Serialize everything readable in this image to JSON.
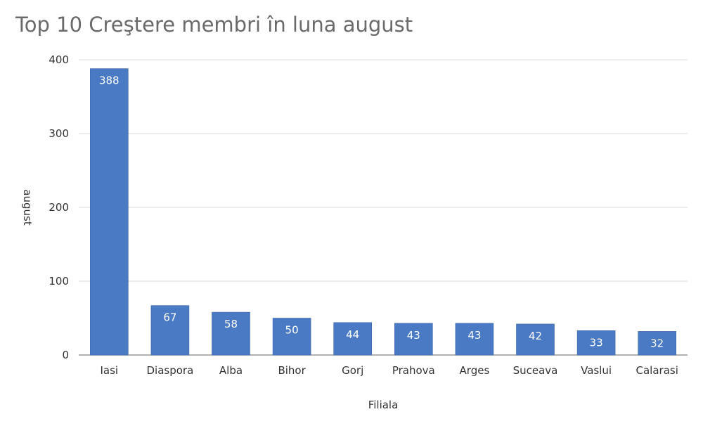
{
  "chart_data": {
    "type": "bar",
    "title": "Top 10 Creştere membri în luna august",
    "xlabel": "Filiala",
    "ylabel": "august",
    "categories": [
      "Iasi",
      "Diaspora",
      "Alba",
      "Bihor",
      "Gorj",
      "Prahova",
      "Arges",
      "Suceava",
      "Vaslui",
      "Calarasi"
    ],
    "values": [
      388,
      67,
      58,
      50,
      44,
      43,
      43,
      42,
      33,
      32
    ],
    "ylim": [
      0,
      400
    ],
    "yticks": [
      0,
      100,
      200,
      300,
      400
    ],
    "grid": true,
    "legend": "none",
    "bar_color": "#4a7ac4",
    "data_labels": "inside-top"
  }
}
